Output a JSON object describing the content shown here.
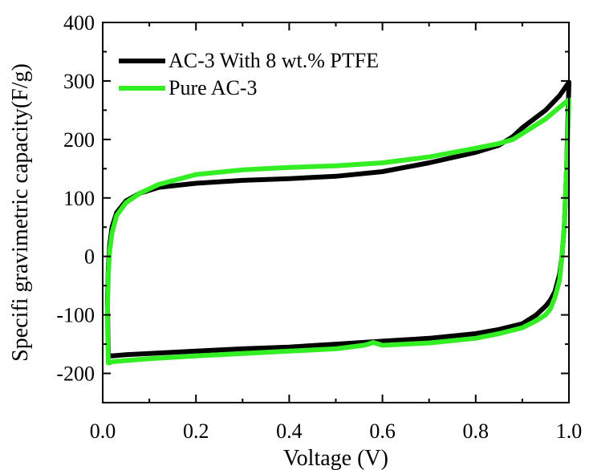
{
  "chart_data": {
    "type": "line",
    "title": "",
    "xlabel": "Voltage (V)",
    "ylabel": "Specifi gravimetric capacity(F/g)",
    "xlim": [
      0.0,
      1.0
    ],
    "ylim": [
      -250,
      400
    ],
    "x_ticks": [
      0.0,
      0.2,
      0.4,
      0.6,
      0.8,
      1.0
    ],
    "x_tick_labels": [
      "0.0",
      "0.2",
      "0.4",
      "0.6",
      "0.8",
      "1.0"
    ],
    "y_ticks": [
      -200,
      -100,
      0,
      100,
      200,
      300,
      400
    ],
    "y_tick_labels": [
      "-200",
      "-100",
      "0",
      "100",
      "200",
      "300",
      "400"
    ],
    "grid": false,
    "legend_position": "top-left",
    "series": [
      {
        "name": "AC-3 With 8 wt.% PTFE",
        "color": "#000000",
        "x": [
          0.01,
          0.012,
          0.015,
          0.02,
          0.03,
          0.05,
          0.08,
          0.12,
          0.2,
          0.3,
          0.4,
          0.5,
          0.6,
          0.7,
          0.8,
          0.85,
          0.88,
          0.9,
          0.95,
          0.98,
          1.0,
          0.995,
          0.99,
          0.985,
          0.98,
          0.97,
          0.96,
          0.95,
          0.93,
          0.9,
          0.85,
          0.8,
          0.7,
          0.6,
          0.5,
          0.4,
          0.3,
          0.2,
          0.1,
          0.05,
          0.02,
          0.015,
          0.012,
          0.01
        ],
        "y": [
          -80,
          -20,
          20,
          50,
          75,
          95,
          108,
          118,
          125,
          130,
          133,
          137,
          145,
          160,
          178,
          190,
          205,
          220,
          250,
          275,
          298,
          150,
          50,
          0,
          -30,
          -60,
          -75,
          -85,
          -100,
          -115,
          -125,
          -132,
          -140,
          -145,
          -150,
          -155,
          -158,
          -162,
          -166,
          -168,
          -170,
          -170,
          -165,
          -80
        ]
      },
      {
        "name": "Pure AC-3",
        "color": "#33ee22",
        "x": [
          0.01,
          0.012,
          0.015,
          0.02,
          0.03,
          0.05,
          0.08,
          0.12,
          0.2,
          0.3,
          0.4,
          0.5,
          0.6,
          0.7,
          0.8,
          0.85,
          0.88,
          0.9,
          0.95,
          0.98,
          1.0,
          0.995,
          0.99,
          0.985,
          0.98,
          0.97,
          0.96,
          0.95,
          0.93,
          0.9,
          0.85,
          0.8,
          0.7,
          0.6,
          0.58,
          0.57,
          0.56,
          0.5,
          0.4,
          0.3,
          0.2,
          0.1,
          0.05,
          0.02,
          0.015,
          0.012,
          0.01
        ],
        "y": [
          -100,
          -30,
          10,
          40,
          70,
          92,
          108,
          123,
          140,
          148,
          152,
          155,
          160,
          170,
          185,
          193,
          200,
          210,
          235,
          255,
          268,
          150,
          50,
          0,
          -40,
          -70,
          -90,
          -100,
          -110,
          -122,
          -132,
          -140,
          -148,
          -152,
          -147,
          -150,
          -152,
          -158,
          -162,
          -166,
          -170,
          -175,
          -178,
          -180,
          -182,
          -182,
          -100
        ]
      }
    ]
  }
}
